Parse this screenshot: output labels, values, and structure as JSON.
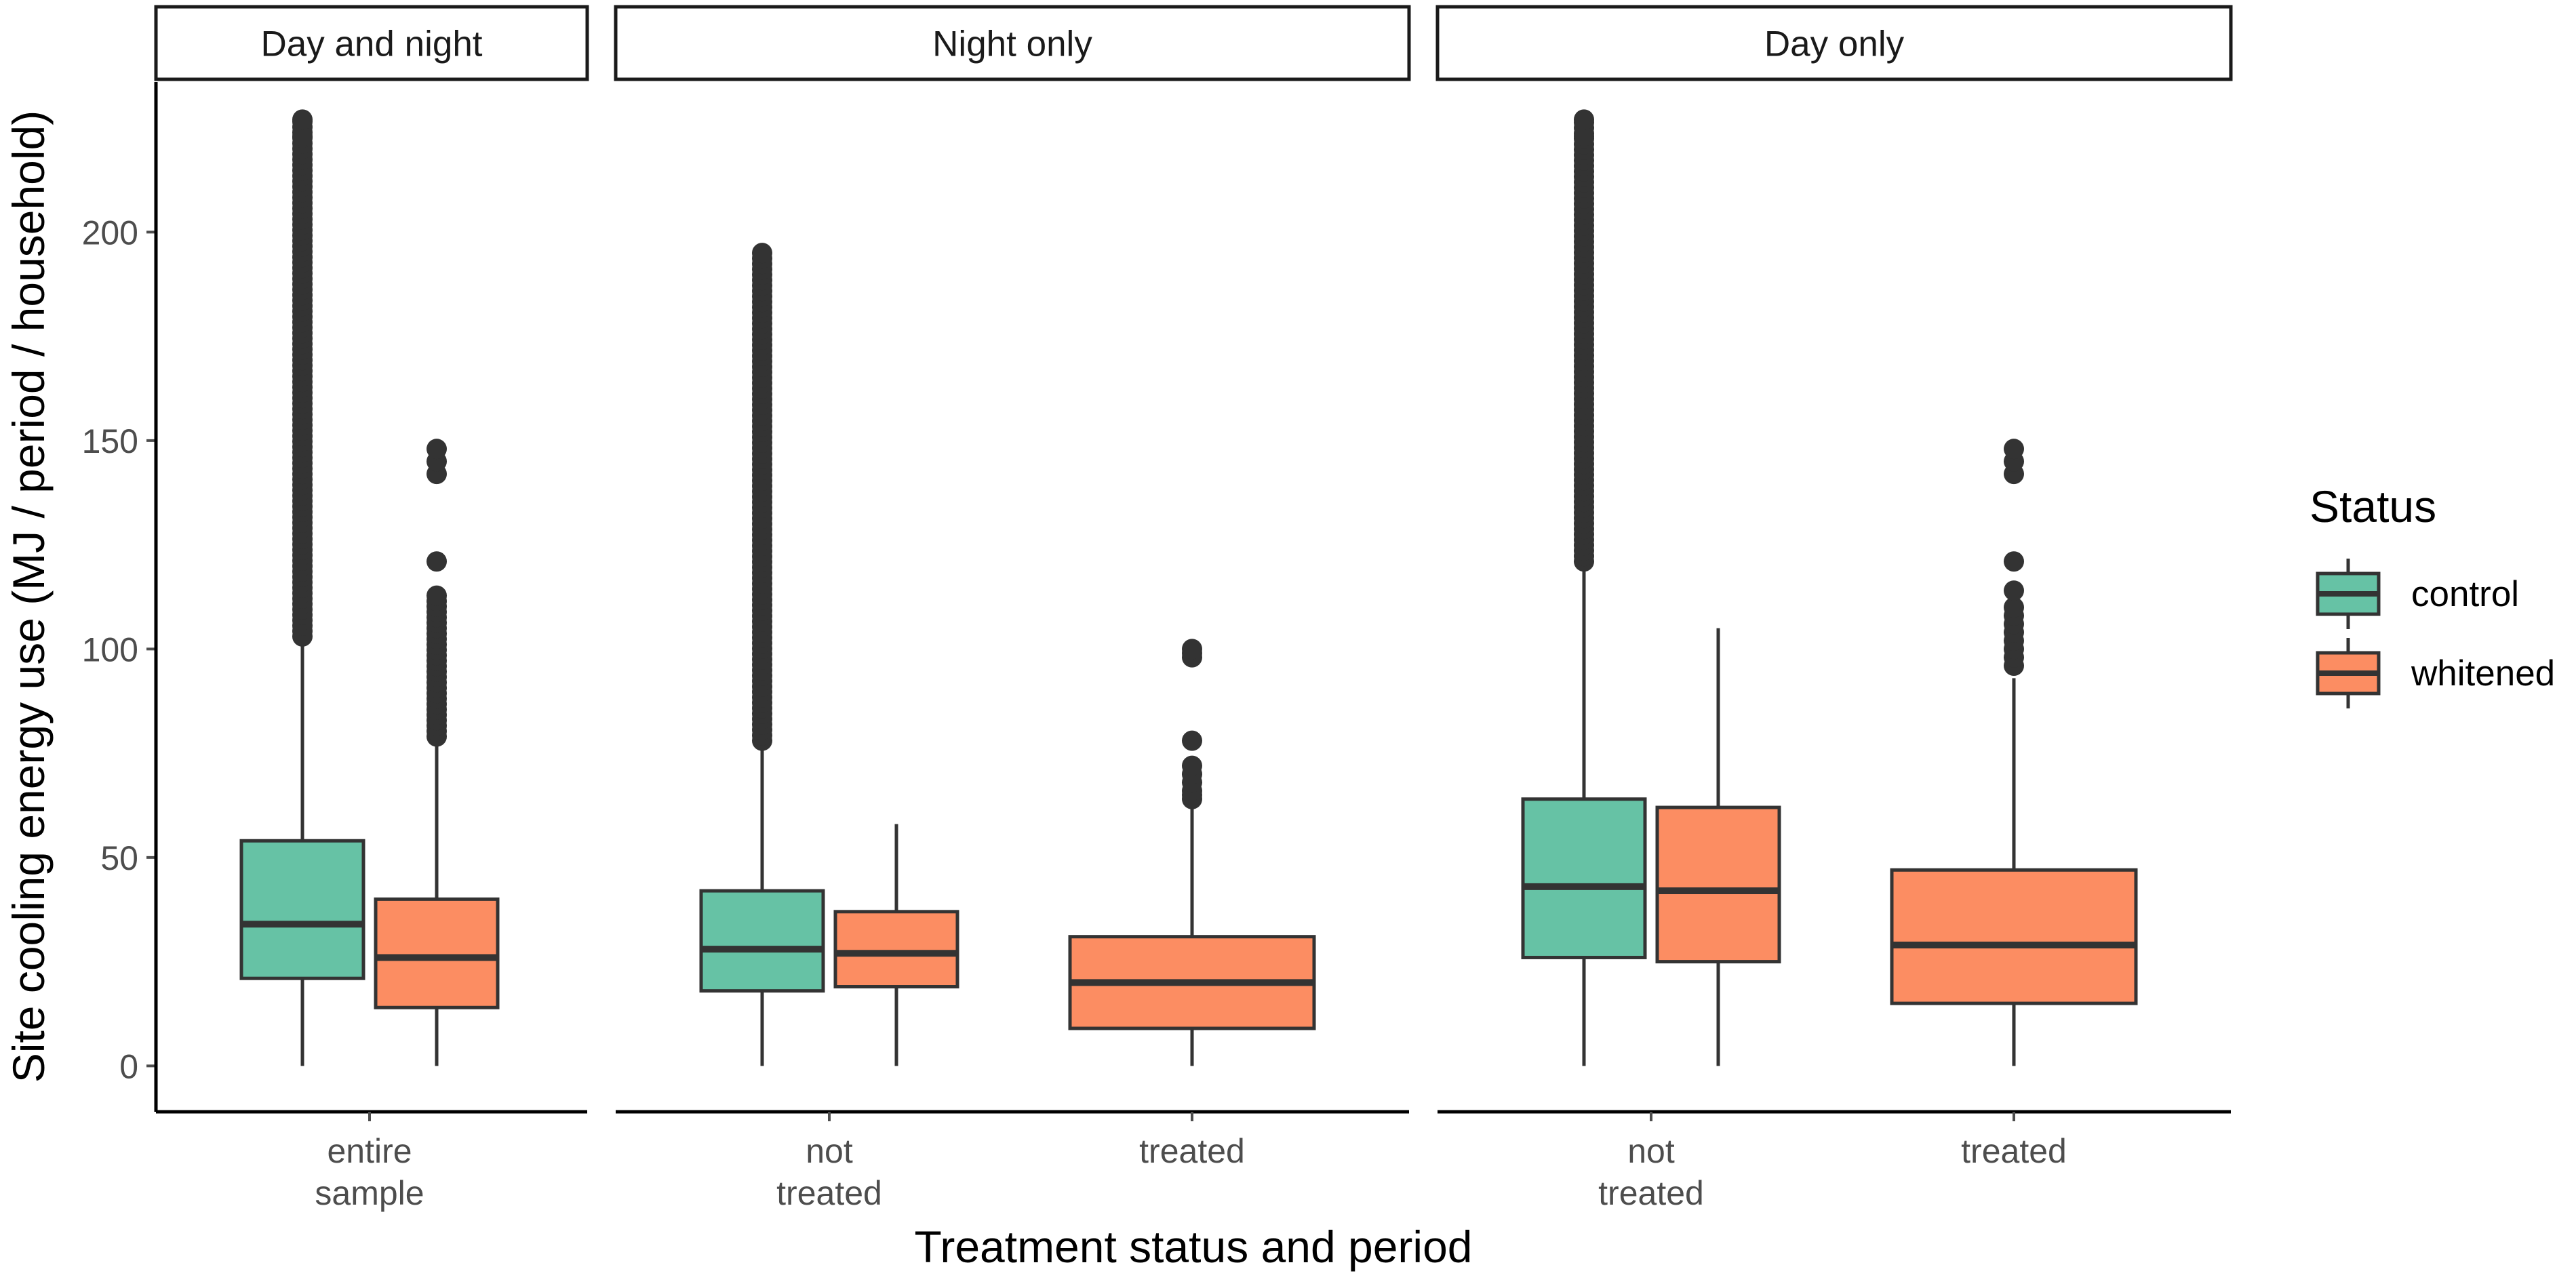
{
  "chart_data": {
    "type": "boxplot",
    "x_axis_title": "Treatment status and period",
    "y_axis_title": "Site cooling energy use (MJ / period / household)",
    "y_ticks": [
      0,
      50,
      100,
      150,
      200
    ],
    "ylim": [
      -11,
      236
    ],
    "legend": {
      "title": "Status",
      "position": "right",
      "items": [
        {
          "label": "control",
          "color": "#66c2a5"
        },
        {
          "label": "whitened",
          "color": "#fc8d62"
        }
      ]
    },
    "panels": [
      {
        "strip": "Day and night",
        "groups": [
          {
            "tick": [
              "entire",
              "sample"
            ],
            "boxes": [
              {
                "status": "control",
                "min": 0,
                "q1": 21,
                "median": 34,
                "q3": 54,
                "max": 103,
                "outliers": {
                  "from": 103,
                  "to": 227,
                  "step": 1.3,
                  "extra": [
                    223,
                    227
                  ]
                }
              },
              {
                "status": "whitened",
                "min": 0,
                "q1": 14,
                "median": 26,
                "q3": 40,
                "max": 79,
                "outliers": {
                  "from": 79,
                  "to": 114,
                  "step": 1.3,
                  "extra": [
                    121,
                    142,
                    145,
                    148
                  ]
                }
              }
            ]
          }
        ]
      },
      {
        "strip": "Night only",
        "groups": [
          {
            "tick": [
              "not",
              "treated"
            ],
            "boxes": [
              {
                "status": "control",
                "min": 0,
                "q1": 18,
                "median": 28,
                "q3": 42,
                "max": 78,
                "outliers": {
                  "from": 78,
                  "to": 196,
                  "step": 1.3,
                  "extra": []
                }
              },
              {
                "status": "whitened",
                "min": 0,
                "q1": 19,
                "median": 27,
                "q3": 37,
                "max": 58,
                "outliers": {
                  "from": 0,
                  "to": 0,
                  "step": 1,
                  "extra": []
                }
              }
            ]
          },
          {
            "tick": [
              "treated"
            ],
            "boxes": [
              {
                "status": "whitened",
                "min": 0,
                "q1": 9,
                "median": 20,
                "q3": 31,
                "max": 62,
                "outliers": {
                  "from": 0,
                  "to": 0,
                  "step": 1,
                  "extra": [
                    64,
                    65,
                    66,
                    68,
                    70,
                    72,
                    78,
                    98,
                    99,
                    100
                  ]
                }
              }
            ]
          }
        ]
      },
      {
        "strip": "Day only",
        "groups": [
          {
            "tick": [
              "not",
              "treated"
            ],
            "boxes": [
              {
                "status": "control",
                "min": 0,
                "q1": 26,
                "median": 43,
                "q3": 64,
                "max": 121,
                "outliers": {
                  "from": 121,
                  "to": 227,
                  "step": 1.3,
                  "extra": [
                    223,
                    227
                  ]
                }
              },
              {
                "status": "whitened",
                "min": 0,
                "q1": 25,
                "median": 42,
                "q3": 62,
                "max": 105,
                "outliers": {
                  "from": 0,
                  "to": 0,
                  "step": 1,
                  "extra": []
                }
              }
            ]
          },
          {
            "tick": [
              "treated"
            ],
            "boxes": [
              {
                "status": "whitened",
                "min": 0,
                "q1": 15,
                "median": 29,
                "q3": 47,
                "max": 93,
                "outliers": {
                  "from": 0,
                  "to": 0,
                  "step": 1,
                  "extra": [
                    96,
                    98,
                    100,
                    102,
                    104,
                    106,
                    108,
                    110,
                    114,
                    121,
                    142,
                    145,
                    148
                  ]
                }
              }
            ]
          }
        ]
      }
    ]
  }
}
